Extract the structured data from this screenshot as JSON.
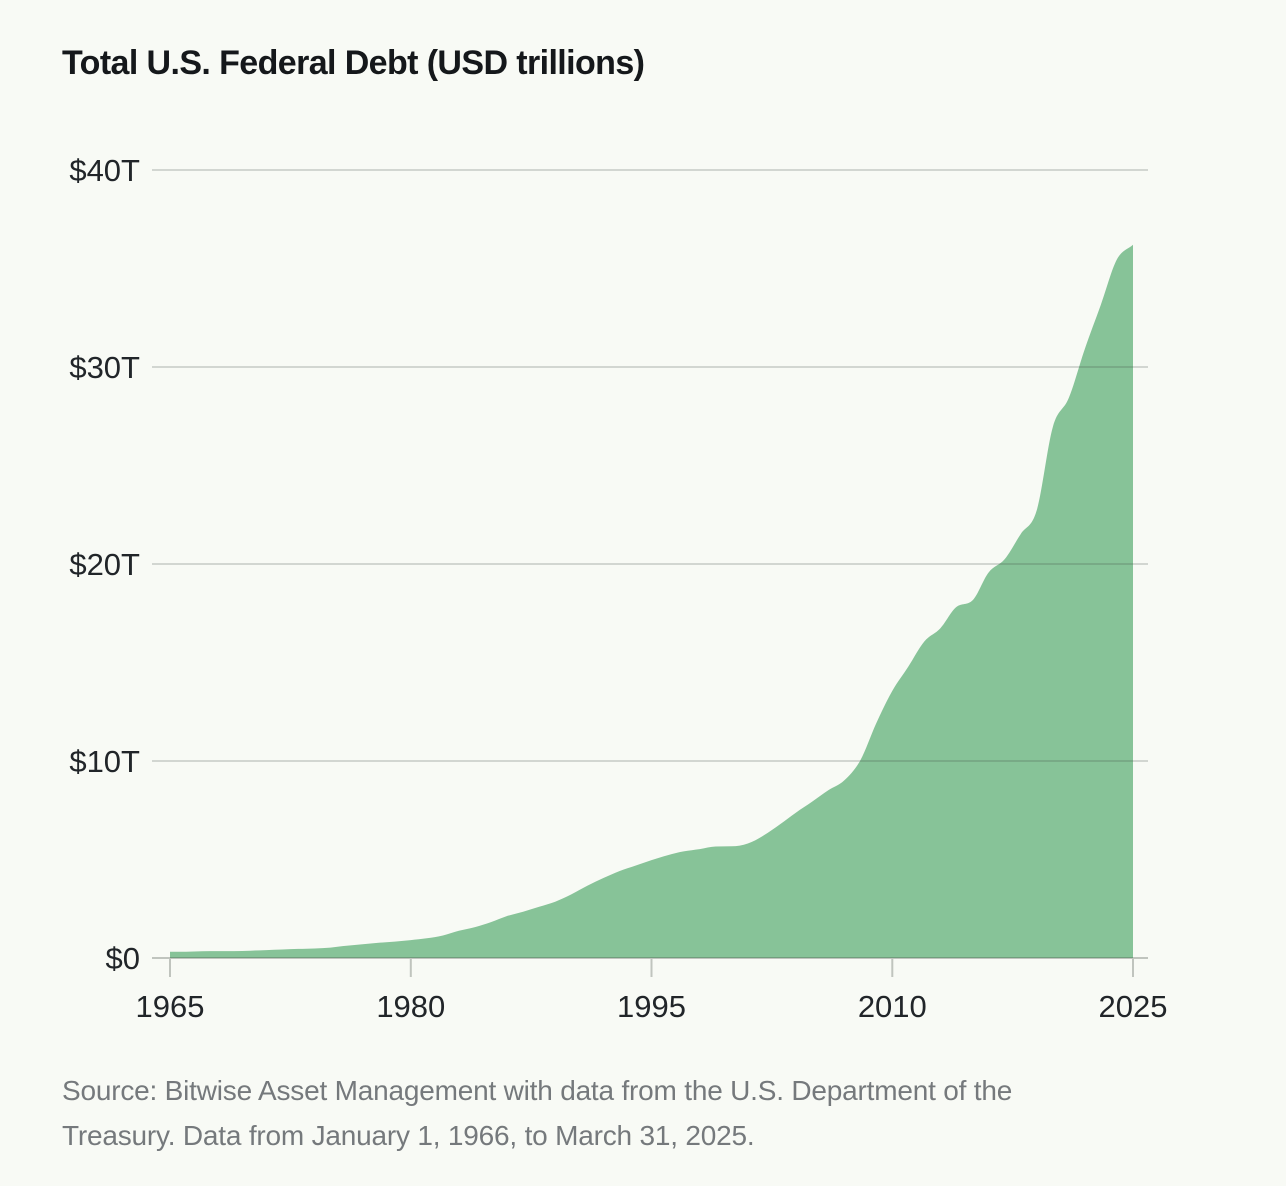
{
  "page": {
    "background": "#f8faf5"
  },
  "header": {
    "title": "Total U.S. Federal Debt (USD trillions)"
  },
  "footer": {
    "source_lines": [
      "Source: Bitwise Asset Management with data from the U.S. Department of the",
      "Treasury. Data from January 1, 1966, to March 31, 2025."
    ]
  },
  "chart_data": {
    "type": "area",
    "title": "Total U.S. Federal Debt (USD trillions)",
    "series_name": "Total U.S. federal debt",
    "unit": "USD trillions",
    "grid": true,
    "legend": false,
    "x": {
      "min": 1965,
      "max": 2025,
      "ticks": [
        {
          "value": 1965,
          "label": "1965"
        },
        {
          "value": 1980,
          "label": "1980"
        },
        {
          "value": 1995,
          "label": "1995"
        },
        {
          "value": 2010,
          "label": "2010"
        },
        {
          "value": 2025,
          "label": "2025"
        }
      ]
    },
    "y": {
      "min": 0,
      "max": 40,
      "ticks": [
        {
          "value": 0,
          "label": "$0"
        },
        {
          "value": 10,
          "label": "$10T"
        },
        {
          "value": 20,
          "label": "$20T"
        },
        {
          "value": 30,
          "label": "$30T"
        },
        {
          "value": 40,
          "label": "$40T"
        }
      ]
    },
    "colors": {
      "background": "#f8faf5",
      "area_fill": "#87c398",
      "grid_line": "rgba(62,72,64,0.20)",
      "axis_line": "rgba(62,72,64,0.30)",
      "tick_mark": "rgba(62,72,64,0.30)",
      "tick_label": "#212529",
      "title_text": "#15181b",
      "source_text": "#75797c"
    },
    "points": [
      [
        1966,
        0.32
      ],
      [
        1967,
        0.34
      ],
      [
        1968,
        0.35
      ],
      [
        1969,
        0.35
      ],
      [
        1970,
        0.37
      ],
      [
        1971,
        0.4
      ],
      [
        1972,
        0.43
      ],
      [
        1973,
        0.46
      ],
      [
        1974,
        0.48
      ],
      [
        1975,
        0.53
      ],
      [
        1976,
        0.62
      ],
      [
        1977,
        0.7
      ],
      [
        1978,
        0.77
      ],
      [
        1979,
        0.83
      ],
      [
        1980,
        0.91
      ],
      [
        1981,
        1.0
      ],
      [
        1982,
        1.14
      ],
      [
        1983,
        1.38
      ],
      [
        1984,
        1.57
      ],
      [
        1985,
        1.82
      ],
      [
        1986,
        2.13
      ],
      [
        1987,
        2.35
      ],
      [
        1988,
        2.6
      ],
      [
        1989,
        2.86
      ],
      [
        1990,
        3.23
      ],
      [
        1991,
        3.67
      ],
      [
        1992,
        4.06
      ],
      [
        1993,
        4.41
      ],
      [
        1994,
        4.69
      ],
      [
        1995,
        4.97
      ],
      [
        1996,
        5.22
      ],
      [
        1997,
        5.41
      ],
      [
        1998,
        5.53
      ],
      [
        1999,
        5.66
      ],
      [
        2000,
        5.67
      ],
      [
        2001,
        5.81
      ],
      [
        2002,
        6.23
      ],
      [
        2003,
        6.78
      ],
      [
        2004,
        7.38
      ],
      [
        2005,
        7.93
      ],
      [
        2006,
        8.51
      ],
      [
        2007,
        9.01
      ],
      [
        2008,
        10.02
      ],
      [
        2009,
        11.91
      ],
      [
        2010,
        13.56
      ],
      [
        2011,
        14.79
      ],
      [
        2012,
        16.07
      ],
      [
        2013,
        16.74
      ],
      [
        2014,
        17.82
      ],
      [
        2015,
        18.15
      ],
      [
        2016,
        19.57
      ],
      [
        2017,
        20.24
      ],
      [
        2018,
        21.52
      ],
      [
        2019,
        22.72
      ],
      [
        2020,
        26.95
      ],
      [
        2021,
        28.43
      ],
      [
        2022,
        30.93
      ],
      [
        2023,
        33.17
      ],
      [
        2024,
        35.46
      ],
      [
        2025.25,
        36.21
      ]
    ]
  }
}
